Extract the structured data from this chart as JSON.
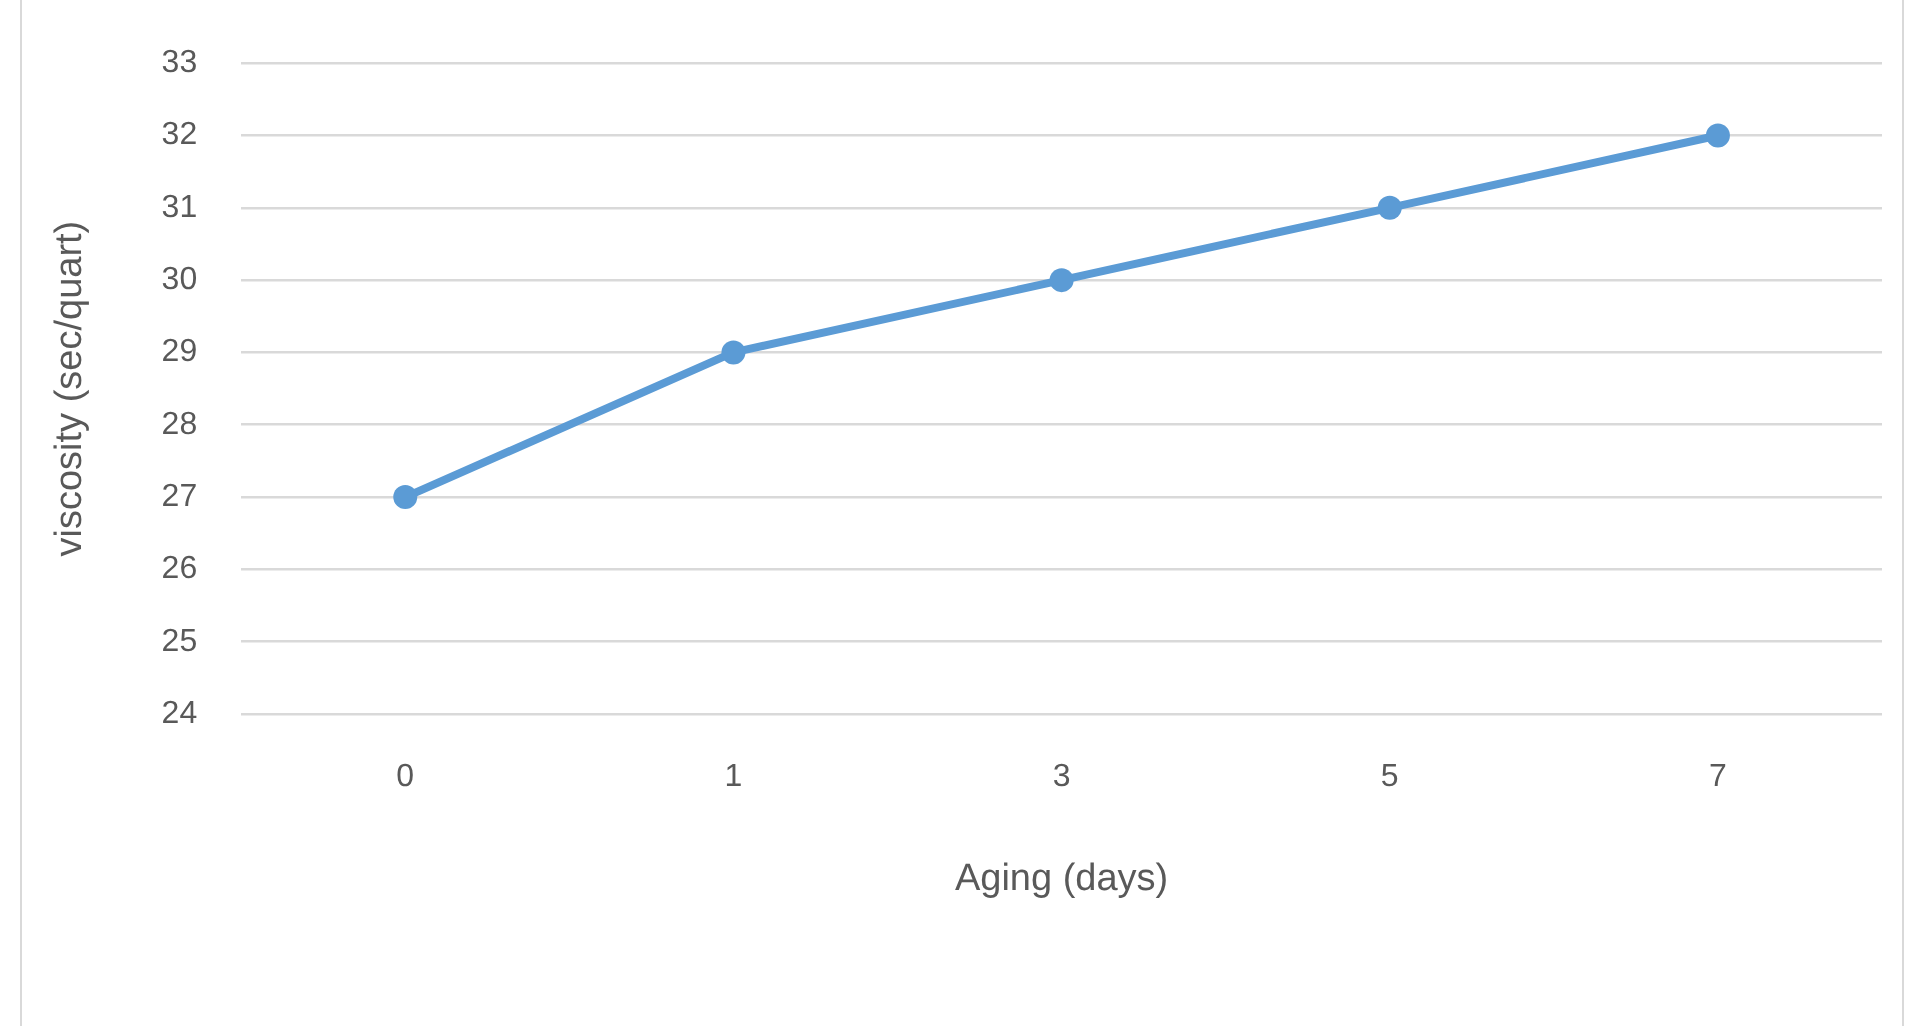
{
  "chart_data": {
    "type": "line",
    "xlabel": "Aging (days)",
    "ylabel": "viscosity (sec/quart)",
    "categories": [
      "0",
      "1",
      "3",
      "5",
      "7"
    ],
    "series": [
      {
        "color": "#5b9bd5",
        "values": [
          27,
          29,
          30,
          31,
          32
        ]
      }
    ],
    "ylim": [
      24,
      33
    ],
    "yticks": [
      24,
      25,
      26,
      27,
      28,
      29,
      30,
      31,
      32,
      33
    ],
    "grid": "y",
    "legend": false,
    "marker": "circle",
    "line_style": "solid"
  }
}
